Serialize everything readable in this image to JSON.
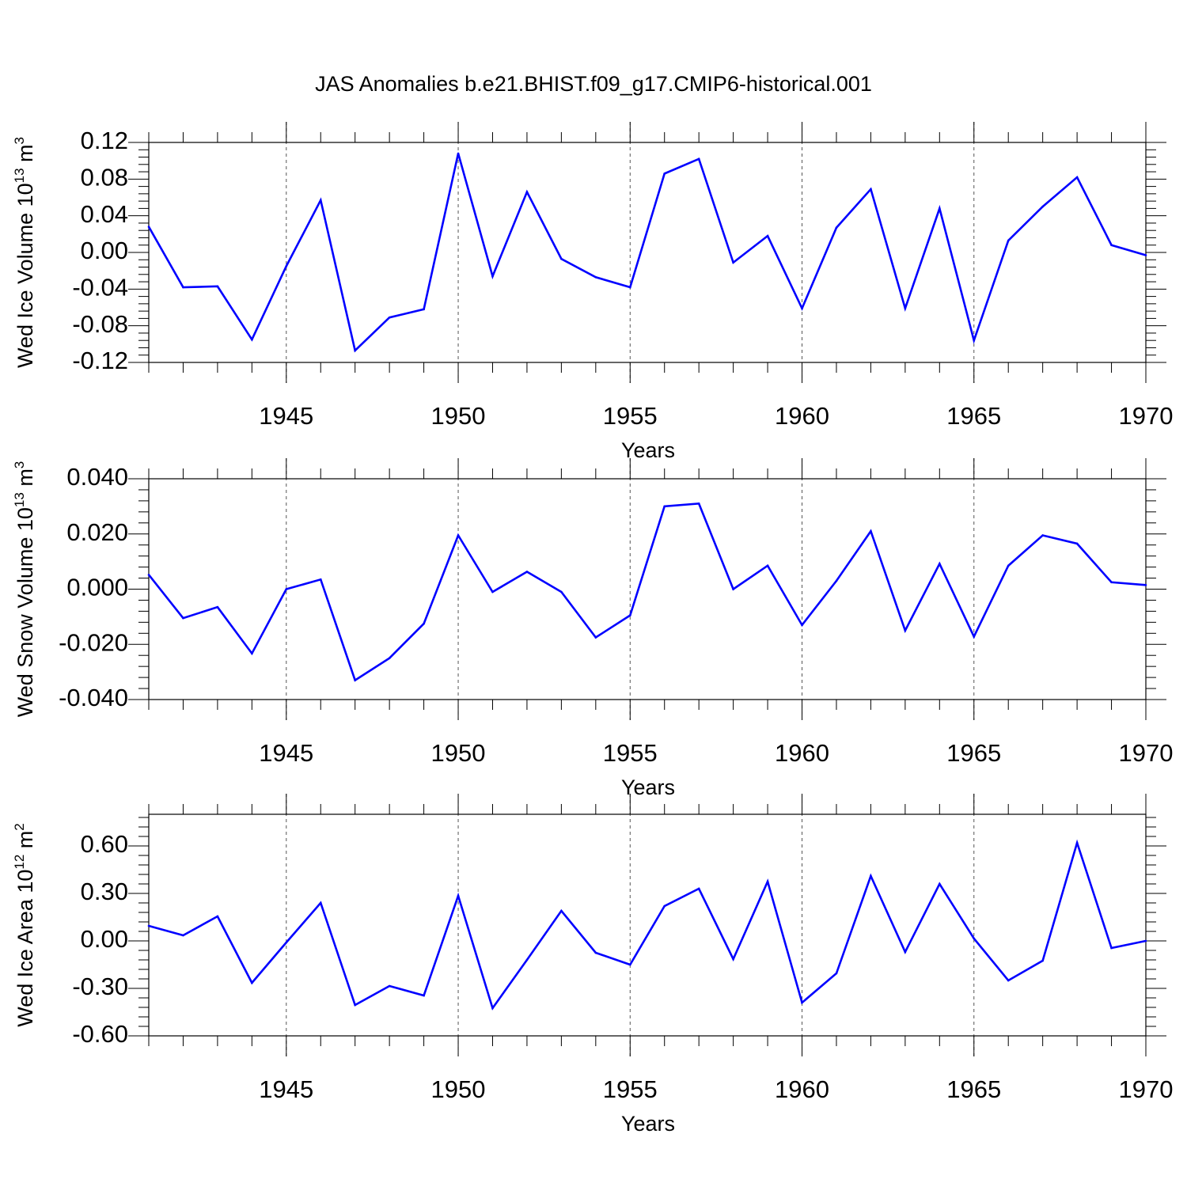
{
  "title": "JAS Anomalies b.e21.BHIST.f09_g17.CMIP6-historical.001",
  "colors": {
    "series": "#0000ff",
    "axis": "#000000",
    "grid": "#555555"
  },
  "chart_data": [
    {
      "type": "line",
      "ylabel": "Wed Ice Volume",
      "yunit_base": " 10",
      "yunit_exp": "13",
      "yunit_suffix": " m",
      "yunit_suffix_exp": "3",
      "xlabel": "Years",
      "xlim": [
        1941,
        1970
      ],
      "ylim": [
        -0.12,
        0.12
      ],
      "yticks": [
        -0.12,
        -0.08,
        -0.04,
        0.0,
        0.04,
        0.08,
        0.12
      ],
      "yticklabels": [
        "-0.12",
        "-0.08",
        "-0.04",
        "0.00",
        "0.04",
        "0.08",
        "0.12"
      ],
      "xticks": [
        1945,
        1950,
        1955,
        1960,
        1965,
        1970
      ],
      "xticklabels": [
        "1945",
        "1950",
        "1955",
        "1960",
        "1965",
        "1970"
      ],
      "x": [
        1941,
        1942,
        1943,
        1944,
        1945,
        1946,
        1947,
        1948,
        1949,
        1950,
        1951,
        1952,
        1953,
        1954,
        1955,
        1956,
        1957,
        1958,
        1959,
        1960,
        1961,
        1962,
        1963,
        1964,
        1965,
        1966,
        1967,
        1968,
        1969,
        1970
      ],
      "values": [
        0.028,
        -0.038,
        -0.037,
        -0.095,
        -0.015,
        0.057,
        -0.107,
        -0.071,
        -0.062,
        0.108,
        -0.026,
        0.066,
        -0.007,
        -0.027,
        -0.038,
        0.086,
        0.102,
        -0.011,
        0.018,
        -0.061,
        0.027,
        0.069,
        -0.061,
        0.048,
        -0.096,
        0.013,
        0.05,
        0.082,
        0.008,
        -0.003
      ]
    },
    {
      "type": "line",
      "ylabel": "Wed Snow Volume",
      "yunit_base": " 10",
      "yunit_exp": "13",
      "yunit_suffix": " m",
      "yunit_suffix_exp": "3",
      "xlabel": "Years",
      "xlim": [
        1941,
        1970
      ],
      "ylim": [
        -0.04,
        0.04
      ],
      "yticks": [
        -0.04,
        -0.02,
        0.0,
        0.02,
        0.04
      ],
      "yticklabels": [
        "-0.040",
        "-0.020",
        "0.000",
        "0.020",
        "0.040"
      ],
      "xticks": [
        1945,
        1950,
        1955,
        1960,
        1965,
        1970
      ],
      "xticklabels": [
        "1945",
        "1950",
        "1955",
        "1960",
        "1965",
        "1970"
      ],
      "x": [
        1941,
        1942,
        1943,
        1944,
        1945,
        1946,
        1947,
        1948,
        1949,
        1950,
        1951,
        1952,
        1953,
        1954,
        1955,
        1956,
        1957,
        1958,
        1959,
        1960,
        1961,
        1962,
        1963,
        1964,
        1965,
        1966,
        1967,
        1968,
        1969,
        1970
      ],
      "values": [
        0.0052,
        -0.0105,
        -0.0065,
        -0.0233,
        0.0,
        0.0035,
        -0.033,
        -0.025,
        -0.0125,
        0.0195,
        -0.001,
        0.0063,
        -0.001,
        -0.0175,
        -0.0095,
        0.03,
        0.031,
        0.0,
        0.0085,
        -0.013,
        0.003,
        0.021,
        -0.015,
        0.0092,
        -0.0172,
        0.0085,
        0.0195,
        0.0165,
        0.0025,
        0.0015
      ]
    },
    {
      "type": "line",
      "ylabel": "Wed Ice Area",
      "yunit_base": " 10",
      "yunit_exp": "12",
      "yunit_suffix": " m",
      "yunit_suffix_exp": "2",
      "xlabel": "Years",
      "xlim": [
        1941,
        1970
      ],
      "ylim": [
        -0.6,
        0.8
      ],
      "yticks": [
        -0.6,
        -0.3,
        0.0,
        0.3,
        0.6
      ],
      "yticklabels": [
        "-0.60",
        "-0.30",
        "0.00",
        "0.30",
        "0.60"
      ],
      "xticks": [
        1945,
        1950,
        1955,
        1960,
        1965,
        1970
      ],
      "xticklabels": [
        "1945",
        "1950",
        "1955",
        "1960",
        "1965",
        "1970"
      ],
      "x": [
        1941,
        1942,
        1943,
        1944,
        1945,
        1946,
        1947,
        1948,
        1949,
        1950,
        1951,
        1952,
        1953,
        1954,
        1955,
        1956,
        1957,
        1958,
        1959,
        1960,
        1961,
        1962,
        1963,
        1964,
        1965,
        1966,
        1967,
        1968,
        1969,
        1970
      ],
      "values": [
        0.095,
        0.035,
        0.155,
        -0.265,
        -0.01,
        0.24,
        -0.405,
        -0.285,
        -0.345,
        0.285,
        -0.425,
        -0.12,
        0.19,
        -0.075,
        -0.15,
        0.22,
        0.33,
        -0.115,
        0.375,
        -0.39,
        -0.205,
        0.41,
        -0.07,
        0.36,
        0.015,
        -0.25,
        -0.125,
        0.62,
        -0.045,
        0.0
      ]
    }
  ]
}
